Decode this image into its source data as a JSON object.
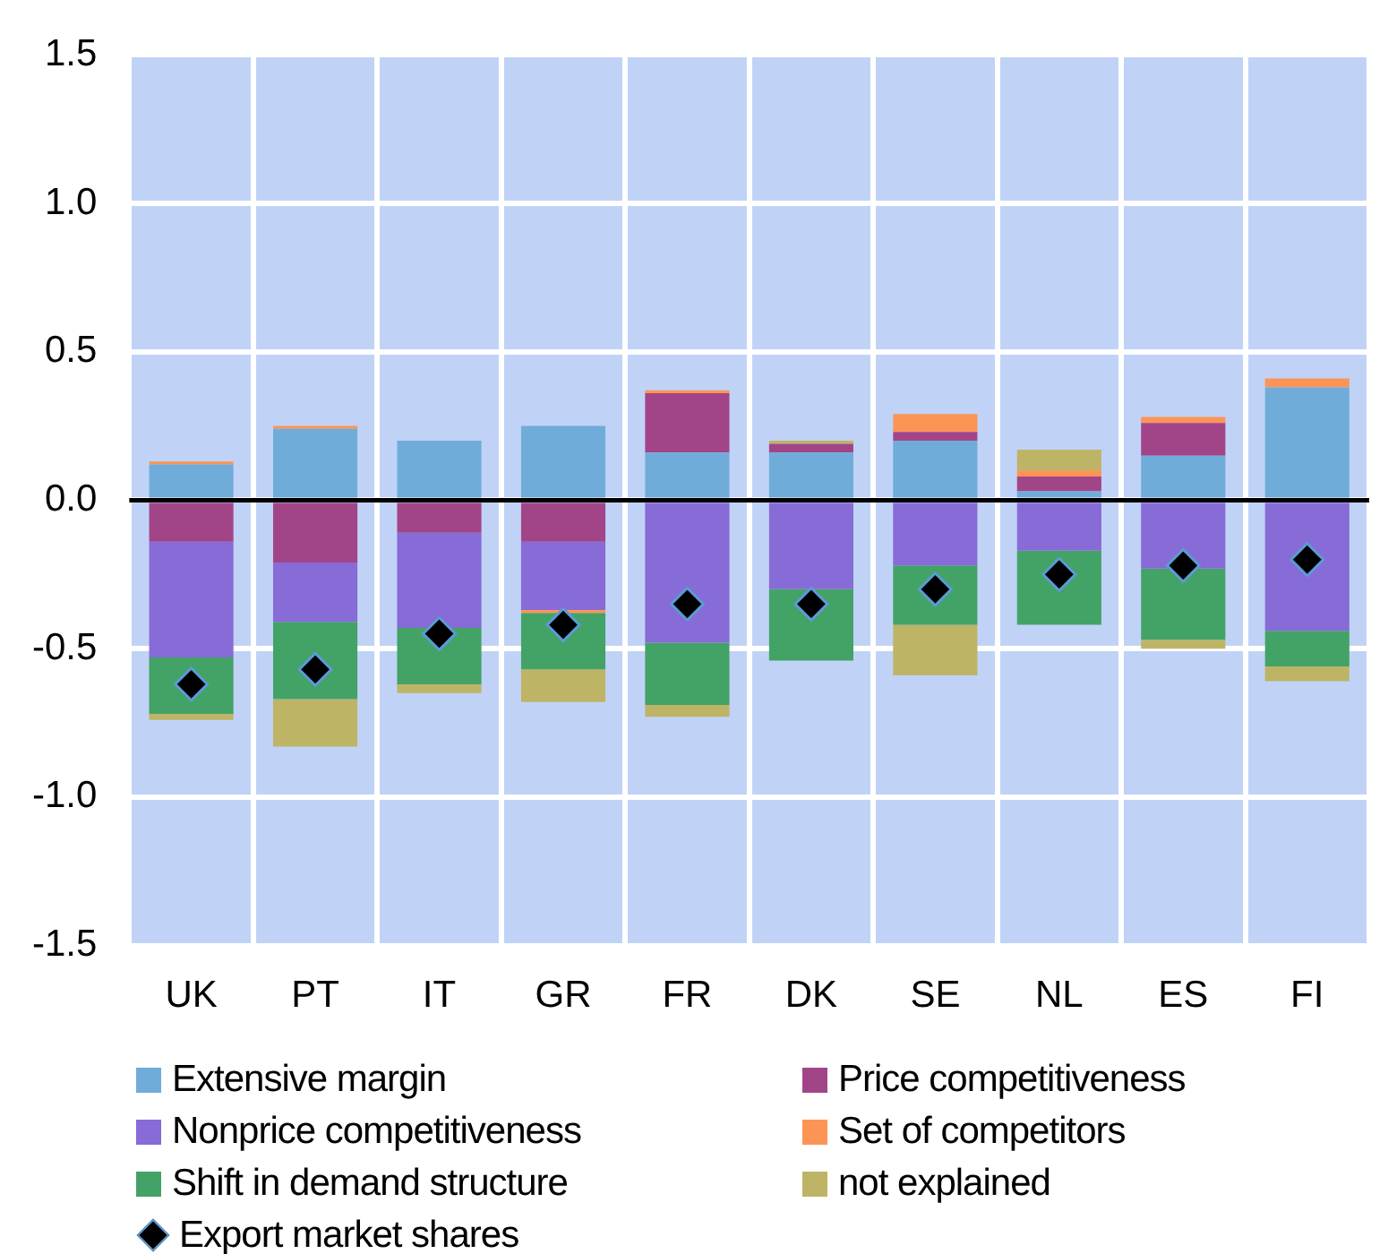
{
  "chart_data": {
    "type": "bar",
    "stacked": true,
    "categories": [
      "UK",
      "PT",
      "IT",
      "GR",
      "FR",
      "DK",
      "SE",
      "NL",
      "ES",
      "FI"
    ],
    "ylim": [
      -1.5,
      1.5
    ],
    "yticks": [
      {
        "value": -1.5,
        "label": "-1.5"
      },
      {
        "value": -1,
        "label": "-1.0"
      },
      {
        "value": -0.5,
        "label": "-0.5"
      },
      {
        "value": 0,
        "label": "0.0"
      },
      {
        "value": 0.5,
        "label": "0.5"
      },
      {
        "value": 1,
        "label": "1.0"
      },
      {
        "value": 1.5,
        "label": "1.5"
      }
    ],
    "grid": true,
    "legend": "bottom",
    "ref_lines": [
      {
        "axis": "y",
        "value": 0,
        "color": "#000000"
      }
    ],
    "series": [
      {
        "name": "Extensive margin",
        "color": "#70acd9",
        "values": [
          0.12,
          0.24,
          0.2,
          0.25,
          0.16,
          0.16,
          0.2,
          0.03,
          0.15,
          0.38
        ]
      },
      {
        "name": "Price competitiveness",
        "color": "#a24588",
        "values": [
          -0.14,
          -0.21,
          -0.11,
          -0.14,
          0.2,
          0.03,
          0.03,
          0.05,
          0.11,
          null
        ]
      },
      {
        "name": "Nonprice competitiveness",
        "color": "#876bd6",
        "values": [
          -0.39,
          -0.2,
          -0.32,
          -0.23,
          -0.48,
          -0.3,
          -0.22,
          -0.17,
          -0.23,
          -0.44
        ]
      },
      {
        "name": "Set of competitors",
        "color": "#fc9455",
        "values": [
          0.01,
          0.01,
          null,
          -0.01,
          0.01,
          null,
          0.06,
          0.02,
          0.02,
          0.03
        ]
      },
      {
        "name": "Shift in demand structure",
        "color": "#43a366",
        "values": [
          -0.19,
          -0.26,
          -0.19,
          -0.19,
          -0.21,
          -0.24,
          -0.2,
          -0.25,
          -0.24,
          -0.12
        ]
      },
      {
        "name": "not explained",
        "color": "#beb466",
        "values": [
          -0.02,
          -0.16,
          -0.03,
          -0.11,
          -0.04,
          0.01,
          -0.17,
          0.07,
          -0.03,
          -0.05
        ]
      },
      {
        "name": "Export market shares",
        "type": "scatter",
        "marker": "diamond",
        "color": "#000000",
        "x": [
          "UK",
          "PT",
          "IT",
          "GR",
          "FR",
          "DK",
          "SE",
          "NL",
          "ES",
          "FI"
        ],
        "values": [
          -0.62,
          -0.57,
          -0.45,
          -0.42,
          -0.35,
          -0.35,
          -0.3,
          -0.25,
          -0.22,
          -0.2
        ]
      }
    ]
  }
}
